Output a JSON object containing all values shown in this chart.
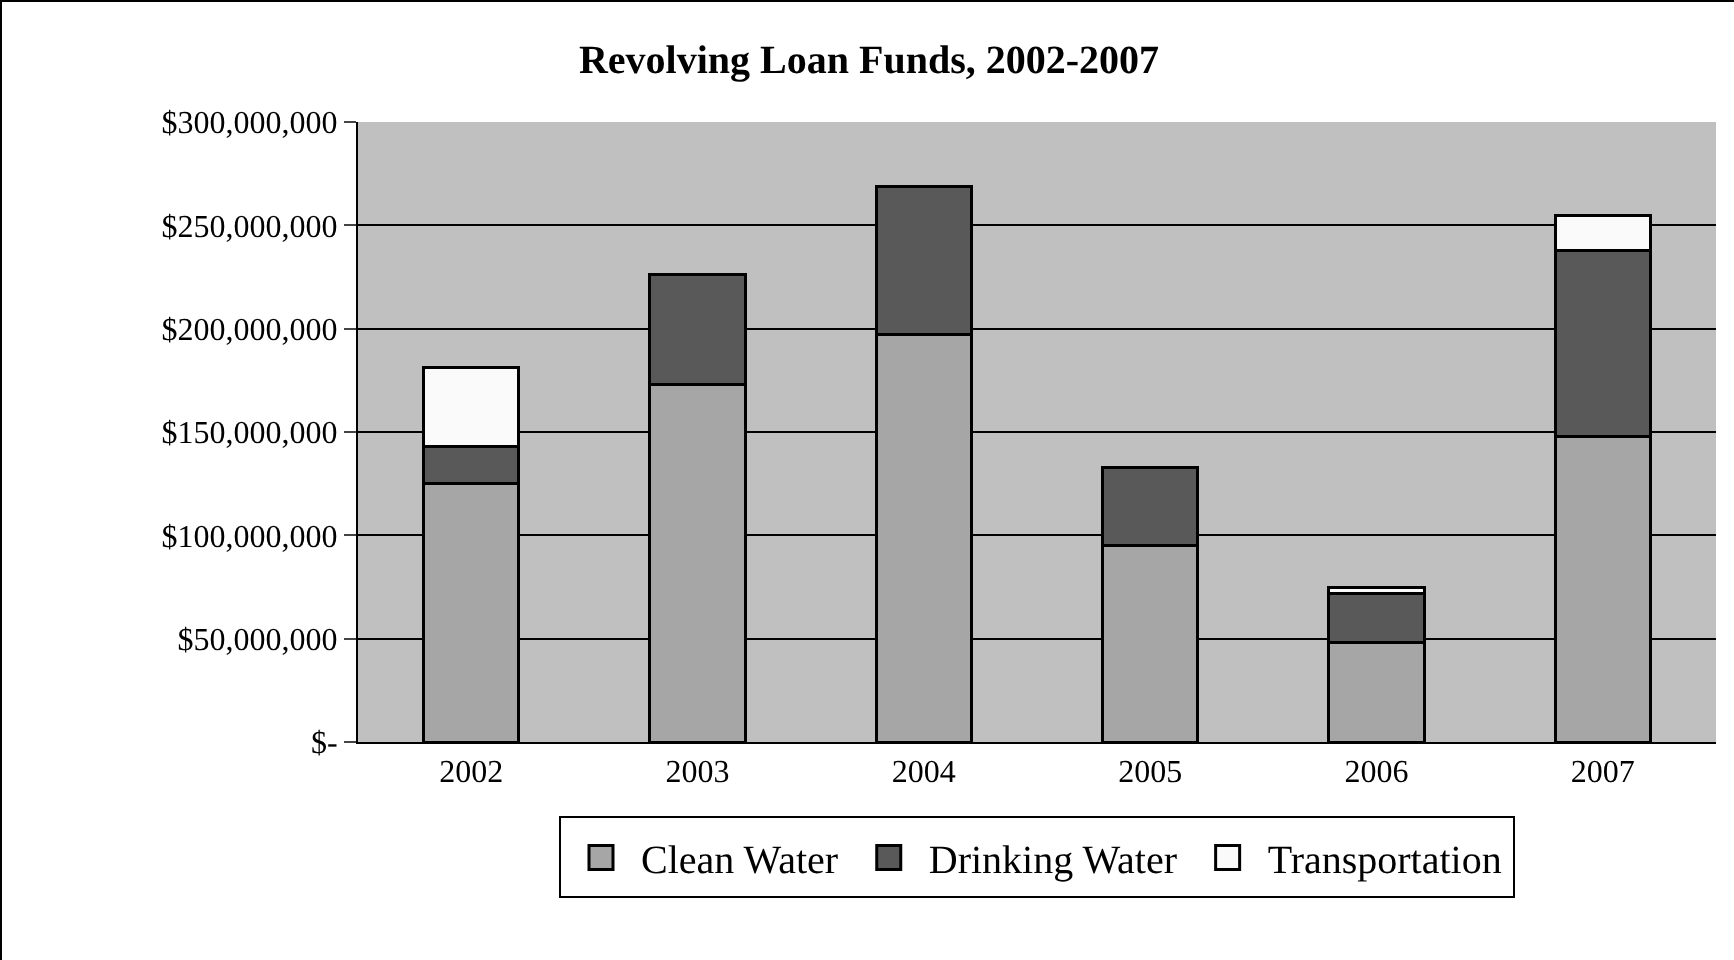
{
  "chart_data": {
    "type": "bar",
    "title": "Revolving Loan Funds, 2002-2007",
    "categories": [
      "2002",
      "2003",
      "2004",
      "2005",
      "2006",
      "2007"
    ],
    "stacked": true,
    "series": [
      {
        "name": "Clean Water",
        "color": "#a6a6a6",
        "values": [
          125000000,
          173000000,
          197000000,
          95000000,
          48000000,
          148000000
        ]
      },
      {
        "name": "Drinking Water",
        "color": "#595959",
        "values": [
          18000000,
          53000000,
          72000000,
          38000000,
          24000000,
          90000000
        ]
      },
      {
        "name": "Transportation",
        "color": "#fafafa",
        "values": [
          38000000,
          null,
          null,
          null,
          3000000,
          17000000
        ]
      }
    ],
    "ylim": [
      0,
      300000000
    ],
    "yticks": [
      {
        "value": 0,
        "label": "$-"
      },
      {
        "value": 50000000,
        "label": "$50,000,000"
      },
      {
        "value": 100000000,
        "label": "$100,000,000"
      },
      {
        "value": 150000000,
        "label": "$150,000,000"
      },
      {
        "value": 200000000,
        "label": "$200,000,000"
      },
      {
        "value": 250000000,
        "label": "$250,000,000"
      },
      {
        "value": 300000000,
        "label": "$300,000,000"
      }
    ],
    "grid": "y",
    "legend": "bottom"
  }
}
